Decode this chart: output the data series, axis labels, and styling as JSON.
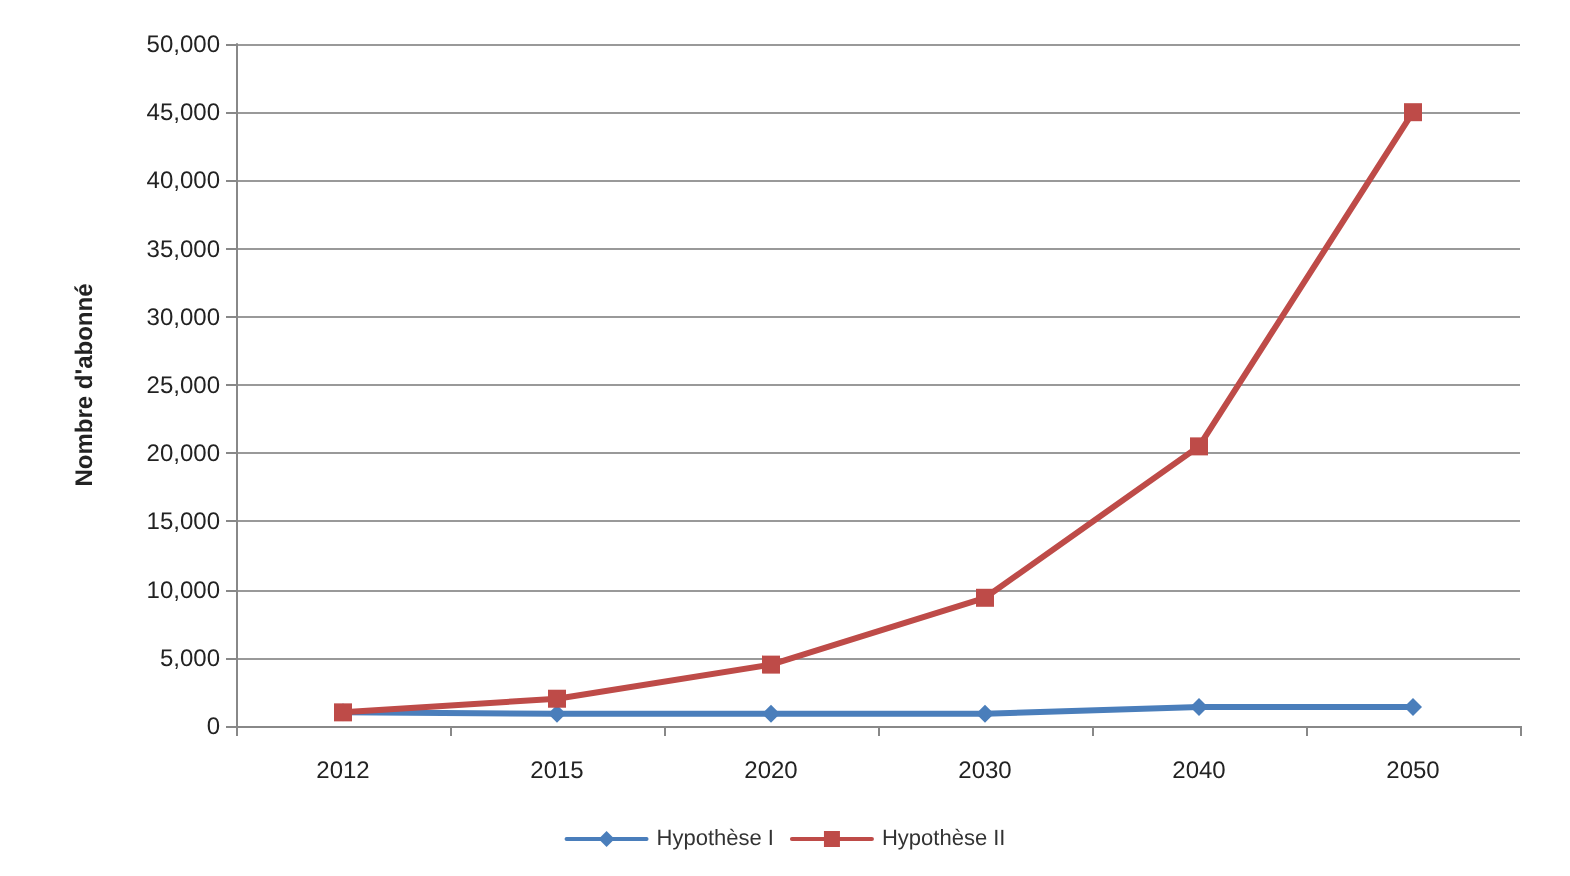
{
  "chart_data": {
    "type": "line",
    "ylabel": "Nombre d'abonné",
    "categories": [
      "2012",
      "2015",
      "2020",
      "2030",
      "2040",
      "2050"
    ],
    "series": [
      {
        "name": "Hypothèse I",
        "color": "#4a7ebb",
        "marker": "diamond",
        "values": [
          1000,
          900,
          900,
          900,
          1400,
          1400
        ]
      },
      {
        "name": "Hypothèse II",
        "color": "#be4b48",
        "marker": "square",
        "values": [
          1000,
          2000,
          4500,
          9400,
          20500,
          45000
        ]
      }
    ],
    "ylim": [
      0,
      50000
    ],
    "yticks": [
      0,
      {
        "value": 5000,
        "label": "5,000"
      },
      {
        "value": 10000,
        "label": "10,000"
      },
      {
        "value": 15000,
        "label": "15,000"
      },
      {
        "value": 20000,
        "label": "20,000"
      },
      {
        "value": 25000,
        "label": "25,000"
      },
      {
        "value": 30000,
        "label": "30,000"
      },
      {
        "value": 35000,
        "label": "35,000"
      },
      {
        "value": 40000,
        "label": "40,000"
      },
      {
        "value": 45000,
        "label": "45,000"
      },
      {
        "value": 50000,
        "label": "50,000"
      }
    ],
    "grid": "y",
    "legend": "bottom"
  }
}
